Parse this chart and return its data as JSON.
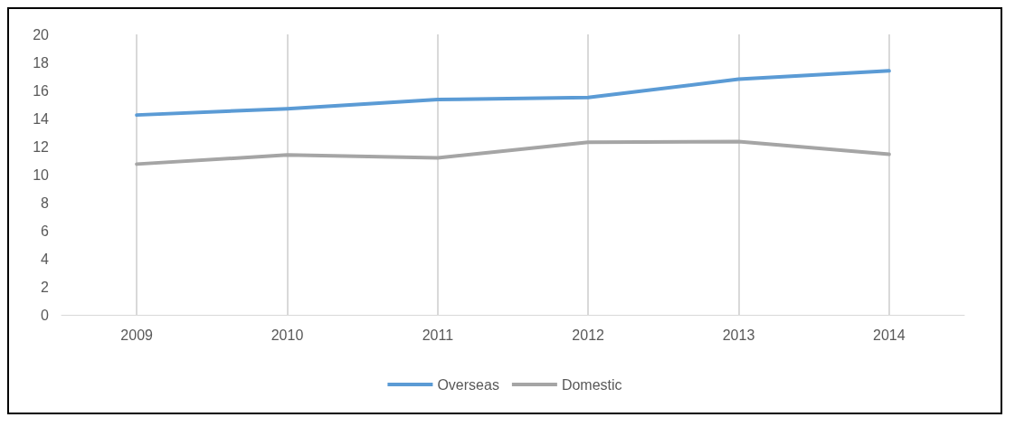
{
  "chart_data": {
    "type": "line",
    "categories": [
      "2009",
      "2010",
      "2011",
      "2012",
      "2013",
      "2014"
    ],
    "series": [
      {
        "name": "Overseas",
        "color": "#5b9bd5",
        "values": [
          14.25,
          14.7,
          15.35,
          15.5,
          16.8,
          17.4
        ]
      },
      {
        "name": "Domestic",
        "color": "#a5a5a5",
        "values": [
          10.75,
          11.4,
          11.2,
          12.3,
          12.35,
          11.45
        ]
      }
    ],
    "ylim": [
      0,
      20
    ],
    "yticks": [
      0,
      2,
      4,
      6,
      8,
      10,
      12,
      14,
      16,
      18,
      20
    ],
    "grid": "x",
    "legend": "bottom",
    "marker": "none",
    "line_style": "solid"
  }
}
